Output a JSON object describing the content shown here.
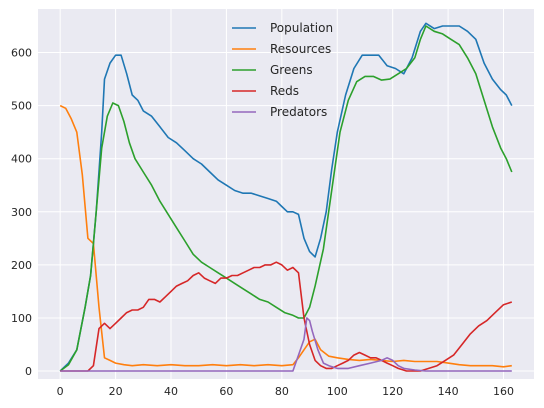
{
  "chart_data": {
    "type": "line",
    "title": "",
    "xlabel": "",
    "ylabel": "",
    "xlim": [
      -8,
      171
    ],
    "ylim": [
      -15,
      682
    ],
    "xticks": [
      0,
      20,
      40,
      60,
      80,
      100,
      120,
      140,
      160
    ],
    "yticks": [
      0,
      100,
      200,
      300,
      400,
      500,
      600
    ],
    "grid": true,
    "legend_position": "top-center",
    "background": "#EAEAF2",
    "series": [
      {
        "name": "Population",
        "color": "#1F77B4",
        "points": [
          [
            0,
            0
          ],
          [
            3,
            15
          ],
          [
            6,
            40
          ],
          [
            9,
            120
          ],
          [
            11,
            180
          ],
          [
            13,
            300
          ],
          [
            15,
            450
          ],
          [
            16,
            550
          ],
          [
            18,
            580
          ],
          [
            20,
            595
          ],
          [
            22,
            595
          ],
          [
            24,
            560
          ],
          [
            26,
            520
          ],
          [
            28,
            510
          ],
          [
            30,
            490
          ],
          [
            33,
            480
          ],
          [
            36,
            460
          ],
          [
            39,
            440
          ],
          [
            42,
            430
          ],
          [
            45,
            415
          ],
          [
            48,
            400
          ],
          [
            51,
            390
          ],
          [
            54,
            375
          ],
          [
            57,
            360
          ],
          [
            60,
            350
          ],
          [
            63,
            340
          ],
          [
            66,
            335
          ],
          [
            69,
            335
          ],
          [
            72,
            330
          ],
          [
            75,
            325
          ],
          [
            78,
            320
          ],
          [
            80,
            310
          ],
          [
            82,
            300
          ],
          [
            84,
            300
          ],
          [
            86,
            295
          ],
          [
            88,
            250
          ],
          [
            90,
            225
          ],
          [
            92,
            215
          ],
          [
            94,
            250
          ],
          [
            96,
            300
          ],
          [
            98,
            380
          ],
          [
            100,
            450
          ],
          [
            103,
            520
          ],
          [
            106,
            570
          ],
          [
            109,
            595
          ],
          [
            112,
            595
          ],
          [
            115,
            595
          ],
          [
            118,
            575
          ],
          [
            121,
            570
          ],
          [
            124,
            560
          ],
          [
            127,
            590
          ],
          [
            130,
            640
          ],
          [
            132,
            655
          ],
          [
            135,
            645
          ],
          [
            138,
            650
          ],
          [
            141,
            650
          ],
          [
            144,
            650
          ],
          [
            147,
            640
          ],
          [
            150,
            625
          ],
          [
            153,
            580
          ],
          [
            156,
            550
          ],
          [
            159,
            530
          ],
          [
            161,
            520
          ],
          [
            163,
            500
          ]
        ]
      },
      {
        "name": "Resources",
        "color": "#FF7F0E",
        "points": [
          [
            0,
            500
          ],
          [
            2,
            495
          ],
          [
            4,
            475
          ],
          [
            6,
            450
          ],
          [
            8,
            370
          ],
          [
            10,
            250
          ],
          [
            12,
            240
          ],
          [
            14,
            120
          ],
          [
            16,
            25
          ],
          [
            18,
            20
          ],
          [
            20,
            15
          ],
          [
            23,
            12
          ],
          [
            26,
            10
          ],
          [
            30,
            12
          ],
          [
            35,
            10
          ],
          [
            40,
            12
          ],
          [
            45,
            10
          ],
          [
            50,
            10
          ],
          [
            55,
            12
          ],
          [
            60,
            10
          ],
          [
            65,
            12
          ],
          [
            70,
            10
          ],
          [
            75,
            12
          ],
          [
            80,
            10
          ],
          [
            84,
            12
          ],
          [
            86,
            25
          ],
          [
            88,
            40
          ],
          [
            90,
            55
          ],
          [
            92,
            60
          ],
          [
            94,
            40
          ],
          [
            97,
            28
          ],
          [
            100,
            25
          ],
          [
            104,
            22
          ],
          [
            108,
            20
          ],
          [
            112,
            22
          ],
          [
            116,
            20
          ],
          [
            120,
            18
          ],
          [
            124,
            20
          ],
          [
            128,
            18
          ],
          [
            132,
            18
          ],
          [
            136,
            18
          ],
          [
            140,
            15
          ],
          [
            144,
            12
          ],
          [
            148,
            10
          ],
          [
            152,
            10
          ],
          [
            156,
            10
          ],
          [
            160,
            8
          ],
          [
            163,
            10
          ]
        ]
      },
      {
        "name": "Greens",
        "color": "#2CA02C",
        "points": [
          [
            0,
            0
          ],
          [
            3,
            12
          ],
          [
            6,
            40
          ],
          [
            9,
            120
          ],
          [
            11,
            180
          ],
          [
            13,
            300
          ],
          [
            15,
            420
          ],
          [
            17,
            480
          ],
          [
            19,
            505
          ],
          [
            21,
            500
          ],
          [
            23,
            470
          ],
          [
            25,
            430
          ],
          [
            27,
            400
          ],
          [
            30,
            375
          ],
          [
            33,
            350
          ],
          [
            36,
            320
          ],
          [
            39,
            295
          ],
          [
            42,
            270
          ],
          [
            45,
            245
          ],
          [
            48,
            220
          ],
          [
            51,
            205
          ],
          [
            54,
            195
          ],
          [
            57,
            185
          ],
          [
            60,
            175
          ],
          [
            63,
            165
          ],
          [
            66,
            155
          ],
          [
            69,
            145
          ],
          [
            72,
            135
          ],
          [
            75,
            130
          ],
          [
            78,
            120
          ],
          [
            81,
            110
          ],
          [
            84,
            105
          ],
          [
            86,
            100
          ],
          [
            88,
            100
          ],
          [
            90,
            120
          ],
          [
            92,
            160
          ],
          [
            95,
            230
          ],
          [
            98,
            340
          ],
          [
            101,
            450
          ],
          [
            104,
            510
          ],
          [
            107,
            545
          ],
          [
            110,
            555
          ],
          [
            113,
            555
          ],
          [
            116,
            548
          ],
          [
            119,
            550
          ],
          [
            122,
            560
          ],
          [
            125,
            570
          ],
          [
            128,
            590
          ],
          [
            130,
            625
          ],
          [
            132,
            650
          ],
          [
            135,
            640
          ],
          [
            138,
            635
          ],
          [
            141,
            625
          ],
          [
            144,
            615
          ],
          [
            147,
            590
          ],
          [
            150,
            560
          ],
          [
            153,
            510
          ],
          [
            156,
            460
          ],
          [
            159,
            420
          ],
          [
            161,
            400
          ],
          [
            163,
            375
          ]
        ]
      },
      {
        "name": "Reds",
        "color": "#D62728",
        "points": [
          [
            0,
            0
          ],
          [
            5,
            0
          ],
          [
            10,
            0
          ],
          [
            12,
            10
          ],
          [
            14,
            80
          ],
          [
            16,
            90
          ],
          [
            18,
            80
          ],
          [
            20,
            90
          ],
          [
            22,
            100
          ],
          [
            24,
            110
          ],
          [
            26,
            115
          ],
          [
            28,
            115
          ],
          [
            30,
            120
          ],
          [
            32,
            135
          ],
          [
            34,
            135
          ],
          [
            36,
            130
          ],
          [
            38,
            140
          ],
          [
            40,
            150
          ],
          [
            42,
            160
          ],
          [
            44,
            165
          ],
          [
            46,
            170
          ],
          [
            48,
            180
          ],
          [
            50,
            185
          ],
          [
            52,
            175
          ],
          [
            54,
            170
          ],
          [
            56,
            165
          ],
          [
            58,
            175
          ],
          [
            60,
            175
          ],
          [
            62,
            180
          ],
          [
            64,
            180
          ],
          [
            66,
            185
          ],
          [
            68,
            190
          ],
          [
            70,
            195
          ],
          [
            72,
            195
          ],
          [
            74,
            200
          ],
          [
            76,
            200
          ],
          [
            78,
            205
          ],
          [
            80,
            200
          ],
          [
            82,
            190
          ],
          [
            84,
            195
          ],
          [
            86,
            185
          ],
          [
            88,
            100
          ],
          [
            90,
            50
          ],
          [
            92,
            20
          ],
          [
            94,
            10
          ],
          [
            96,
            5
          ],
          [
            98,
            5
          ],
          [
            100,
            10
          ],
          [
            102,
            15
          ],
          [
            104,
            20
          ],
          [
            106,
            30
          ],
          [
            108,
            35
          ],
          [
            110,
            30
          ],
          [
            112,
            25
          ],
          [
            114,
            25
          ],
          [
            116,
            20
          ],
          [
            118,
            15
          ],
          [
            120,
            10
          ],
          [
            122,
            5
          ],
          [
            125,
            0
          ],
          [
            130,
            0
          ],
          [
            133,
            5
          ],
          [
            136,
            10
          ],
          [
            139,
            20
          ],
          [
            142,
            30
          ],
          [
            145,
            50
          ],
          [
            148,
            70
          ],
          [
            151,
            85
          ],
          [
            154,
            95
          ],
          [
            157,
            110
          ],
          [
            160,
            125
          ],
          [
            163,
            130
          ]
        ]
      },
      {
        "name": "Predators",
        "color": "#9467BD",
        "points": [
          [
            0,
            0
          ],
          [
            20,
            0
          ],
          [
            40,
            0
          ],
          [
            60,
            0
          ],
          [
            80,
            0
          ],
          [
            84,
            0
          ],
          [
            86,
            30
          ],
          [
            88,
            60
          ],
          [
            89,
            100
          ],
          [
            90,
            95
          ],
          [
            91,
            75
          ],
          [
            93,
            40
          ],
          [
            95,
            15
          ],
          [
            97,
            10
          ],
          [
            100,
            5
          ],
          [
            104,
            5
          ],
          [
            108,
            10
          ],
          [
            112,
            15
          ],
          [
            116,
            20
          ],
          [
            118,
            25
          ],
          [
            120,
            20
          ],
          [
            122,
            10
          ],
          [
            124,
            5
          ],
          [
            128,
            2
          ],
          [
            132,
            0
          ],
          [
            140,
            0
          ],
          [
            150,
            0
          ],
          [
            163,
            0
          ]
        ]
      }
    ]
  }
}
